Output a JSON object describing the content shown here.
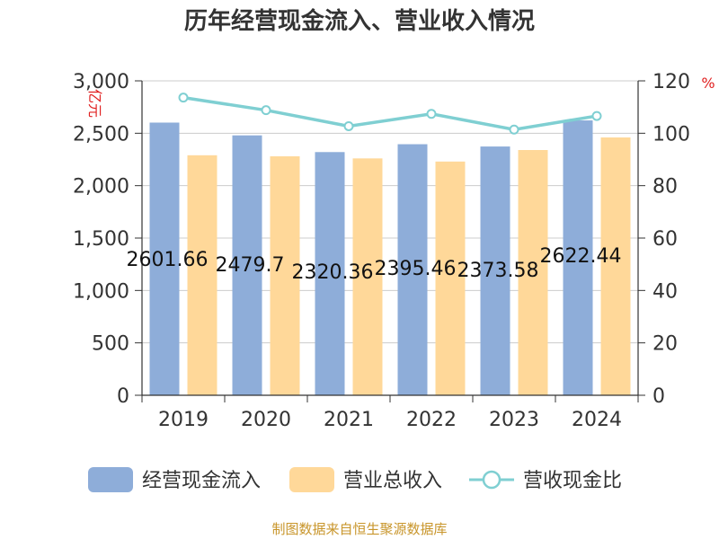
{
  "chart_data": {
    "type": "bar",
    "title": "历年经营现金流入、营业收入情况",
    "categories": [
      "2019",
      "2020",
      "2021",
      "2022",
      "2023",
      "2024"
    ],
    "series": [
      {
        "name": "经营现金流入",
        "axis": "left",
        "values": [
          2601.66,
          2479.7,
          2320.36,
          2395.46,
          2373.58,
          2622.44
        ],
        "color": "#8eadd9"
      },
      {
        "name": "营业总收入",
        "axis": "left",
        "values": [
          2290,
          2280,
          2260,
          2230,
          2340,
          2460
        ],
        "color": "#ffd899"
      },
      {
        "name": "营收现金比",
        "axis": "right",
        "type": "line",
        "values": [
          113.6,
          108.8,
          102.7,
          107.4,
          101.4,
          106.6
        ],
        "color": "#7fcfd2"
      }
    ],
    "data_labels": [
      "2601.66",
      "2479.7",
      "2320.36",
      "2395.46",
      "2373.58",
      "2622.44"
    ],
    "ylabel_left": "亿元",
    "ylabel_right": "%",
    "ylim_left": [
      0,
      3000
    ],
    "ylim_right": [
      0,
      120
    ],
    "yticks_left": [
      "0",
      "500",
      "1,000",
      "1,500",
      "2,000",
      "2,500",
      "3,000"
    ],
    "yticks_right": [
      "0",
      "20",
      "40",
      "60",
      "80",
      "100",
      "120"
    ],
    "grid": true,
    "legend_position": "bottom"
  },
  "source": "制图数据来自恒生聚源数据库"
}
